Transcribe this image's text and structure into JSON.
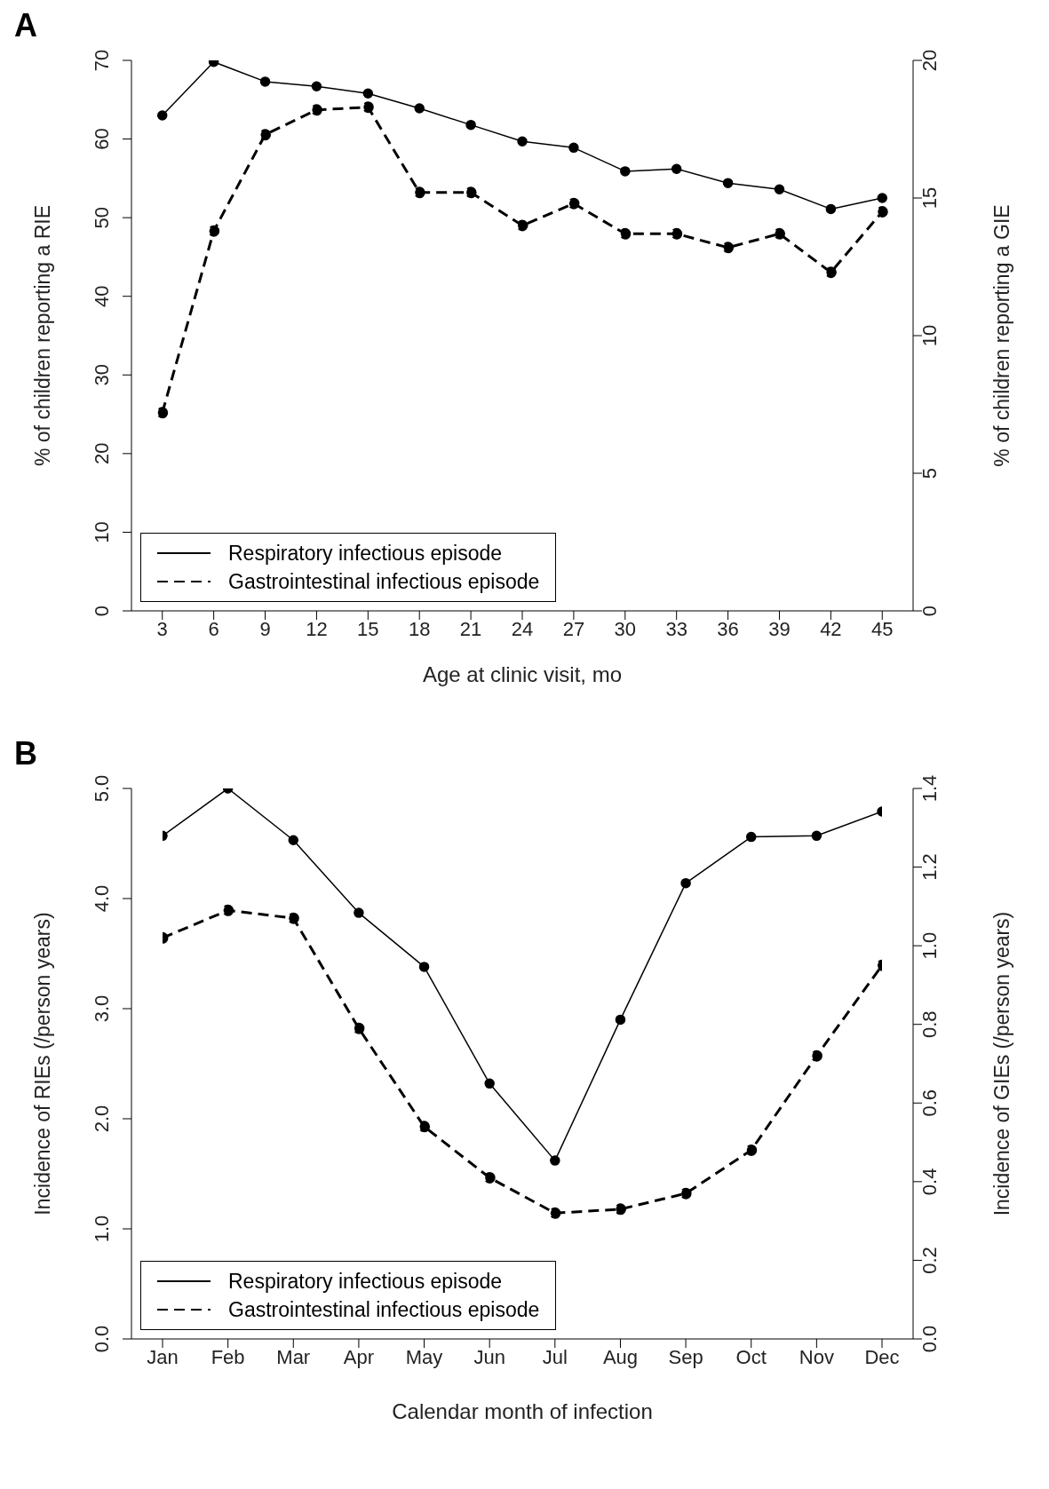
{
  "chart_data": [
    {
      "type": "line",
      "annotations": [
        "A"
      ],
      "xlabel": "Age at clinic visit, mo",
      "ylabel": "% of children reporting a RIE",
      "y2label": "% of children reporting a GIE",
      "x": [
        3,
        6,
        9,
        12,
        15,
        18,
        21,
        24,
        27,
        30,
        33,
        36,
        39,
        42,
        45
      ],
      "xlim": [
        1.2,
        46.8
      ],
      "xticks": [
        3,
        6,
        9,
        12,
        15,
        18,
        21,
        24,
        27,
        30,
        33,
        36,
        39,
        42,
        45
      ],
      "ylim": [
        0,
        70
      ],
      "yticks": [
        0,
        10,
        20,
        30,
        40,
        50,
        60,
        70
      ],
      "y2lim": [
        0,
        20
      ],
      "y2ticks": [
        0,
        5,
        10,
        15,
        20
      ],
      "grid": false,
      "legend": "bottom left",
      "marker": "circle",
      "series": [
        {
          "name": "Respiratory infectious episode",
          "color": "#000000",
          "line_style": "solid",
          "values": [
            63.0,
            69.8,
            67.3,
            66.7,
            65.8,
            63.9,
            61.8,
            59.7,
            58.9,
            55.9,
            56.2,
            54.4,
            53.6,
            51.1,
            52.5
          ]
        },
        {
          "name": "Gastrointestinal infectious episode",
          "color": "#000000",
          "line_style": "dashed",
          "axis": "y2",
          "values": [
            7.2,
            13.8,
            17.3,
            18.2,
            18.3,
            15.2,
            15.2,
            14.0,
            14.8,
            13.7,
            13.7,
            13.2,
            13.7,
            12.3,
            14.5
          ]
        }
      ]
    },
    {
      "type": "line",
      "annotations": [
        "B"
      ],
      "xlabel": "Calendar month of infection",
      "ylabel": "Incidence of RIEs (/person years)",
      "y2label": "Incidence of GIEs (/person years)",
      "categories": [
        "Jan",
        "Feb",
        "Mar",
        "Apr",
        "May",
        "Jun",
        "Jul",
        "Aug",
        "Sep",
        "Oct",
        "Nov",
        "Dec"
      ],
      "ylim": [
        0,
        5
      ],
      "yticks": [
        {
          "value": 0,
          "label": "0.0"
        },
        {
          "value": 1,
          "label": "1.0"
        },
        {
          "value": 2,
          "label": "2.0"
        },
        {
          "value": 3,
          "label": "3.0"
        },
        {
          "value": 4,
          "label": "4.0"
        },
        {
          "value": 5,
          "label": "5.0"
        }
      ],
      "y2lim": [
        0,
        1.4
      ],
      "y2ticks": [
        {
          "value": 0,
          "label": "0.0"
        },
        {
          "value": 0.2,
          "label": "0.2"
        },
        {
          "value": 0.4,
          "label": "0.4"
        },
        {
          "value": 0.6,
          "label": "0.6"
        },
        {
          "value": 0.8,
          "label": "0.8"
        },
        {
          "value": 1.0,
          "label": "1.0"
        },
        {
          "value": 1.2,
          "label": "1.2"
        },
        {
          "value": 1.4,
          "label": "1.4"
        }
      ],
      "grid": false,
      "legend": "bottom left",
      "marker": "circle",
      "series": [
        {
          "name": "Respiratory infectious episode",
          "color": "#000000",
          "line_style": "solid",
          "values": [
            4.57,
            5.0,
            4.53,
            3.87,
            3.38,
            2.32,
            1.62,
            2.9,
            4.14,
            4.56,
            4.57,
            4.79
          ]
        },
        {
          "name": "Gastrointestinal infectious episode",
          "color": "#000000",
          "line_style": "dashed",
          "axis": "y2",
          "values": [
            1.02,
            1.09,
            1.07,
            0.79,
            0.54,
            0.41,
            0.32,
            0.33,
            0.37,
            0.48,
            0.72,
            0.95
          ]
        }
      ]
    }
  ]
}
